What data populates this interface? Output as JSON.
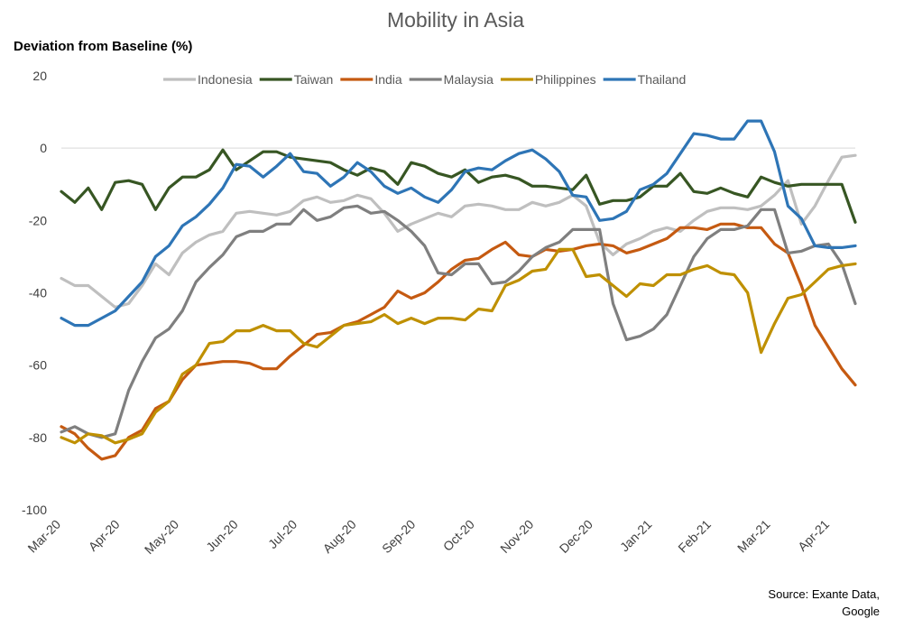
{
  "chart_data": {
    "type": "line",
    "title": "Mobility in Asia",
    "ylabel": "Deviation from Baseline (%)",
    "xlabel": "",
    "ylim": [
      -100,
      20
    ],
    "yticks": [
      20,
      0,
      -20,
      -40,
      -60,
      -80,
      -100
    ],
    "x_tick_labels": [
      "Mar-20",
      "Apr-20",
      "May-20",
      "Jun-20",
      "Jul-20",
      "Aug-20",
      "Sep-20",
      "Oct-20",
      "Nov-20",
      "Dec-20",
      "Jan-21",
      "Feb-21",
      "Mar-21",
      "Apr-21"
    ],
    "legend_position": "top",
    "grid": false,
    "source": [
      "Source: Exante Data,",
      "Google"
    ],
    "series": [
      {
        "name": "Indonesia",
        "color": "#BFBFBF",
        "values": [
          -36,
          -38,
          -38,
          -41,
          -44,
          -43,
          -38,
          -32,
          -35,
          -29,
          -26,
          -24,
          -23,
          -18,
          -17.5,
          -18,
          -18.5,
          -17.5,
          -14.5,
          -13.5,
          -15,
          -14.5,
          -13,
          -14,
          -18,
          -23,
          -21,
          -19.5,
          -18,
          -19,
          -16,
          -15.5,
          -16,
          -17,
          -17,
          -15,
          -16,
          -15,
          -13,
          -16,
          -26,
          -29.5,
          -26.5,
          -25,
          -23,
          -22,
          -23,
          -20,
          -17.5,
          -16.5,
          -16.5,
          -17,
          -16,
          -13,
          -9,
          -21,
          -16,
          -9,
          -2.5,
          -2
        ]
      },
      {
        "name": "Taiwan",
        "color": "#375623",
        "values": [
          -12,
          -15,
          -11,
          -17,
          -9.5,
          -9,
          -10,
          -17,
          -11,
          -8,
          -8,
          -6,
          -0.5,
          -6,
          -3.5,
          -1,
          -1,
          -2.5,
          -3,
          -3.5,
          -4,
          -6,
          -7.5,
          -5.5,
          -6.5,
          -10,
          -4,
          -5,
          -7,
          -8,
          -6,
          -9.5,
          -8,
          -7.5,
          -8.5,
          -10.5,
          -10.5,
          -11,
          -11.5,
          -7.5,
          -15.5,
          -14.5,
          -14.5,
          -13.5,
          -10.5,
          -10.5,
          -7,
          -12,
          -12.5,
          -11,
          -12.5,
          -13.5,
          -8,
          -9.5,
          -10.5,
          -10,
          -10,
          -10,
          -10,
          -20.5
        ]
      },
      {
        "name": "India",
        "color": "#C55A11",
        "values": [
          -77,
          -79,
          -83,
          -86,
          -85,
          -80,
          -78,
          -72,
          -70,
          -64,
          -60,
          -59.5,
          -59,
          -59,
          -59.5,
          -61,
          -61,
          -57.5,
          -54.5,
          -51.5,
          -51,
          -49,
          -48,
          -46,
          -44,
          -39.5,
          -41.5,
          -40,
          -37,
          -33.5,
          -31,
          -30.5,
          -28,
          -26,
          -29.5,
          -30,
          -28,
          -28.5,
          -28,
          -27,
          -26.5,
          -27,
          -29,
          -28,
          -26.5,
          -25,
          -22,
          -22,
          -22.5,
          -21,
          -21,
          -22,
          -22,
          -26.5,
          -29,
          -38,
          -49,
          -55,
          -61,
          -65.5
        ]
      },
      {
        "name": "Malaysia",
        "color": "#7F7F7F",
        "values": [
          -78.5,
          -77,
          -79,
          -80,
          -79,
          -67,
          -59,
          -52.5,
          -50,
          -45,
          -37,
          -33,
          -29.5,
          -24.5,
          -23,
          -23,
          -21,
          -21,
          -17,
          -20,
          -19,
          -16.5,
          -16,
          -18,
          -17.5,
          -20,
          -23,
          -27,
          -34.5,
          -35,
          -32,
          -32,
          -37.5,
          -37,
          -34,
          -30,
          -27.5,
          -26,
          -22.5,
          -22.5,
          -22.5,
          -43,
          -53,
          -52,
          -50,
          -46,
          -38,
          -30,
          -25,
          -22.5,
          -22.5,
          -21.5,
          -17,
          -17,
          -29,
          -28.5,
          -27,
          -26.5,
          -32,
          -43
        ]
      },
      {
        "name": "Philippines",
        "color": "#BF9000",
        "values": [
          -80,
          -81.5,
          -79,
          -79.5,
          -81.5,
          -80.5,
          -79,
          -73,
          -70,
          -62.5,
          -60,
          -54,
          -53.5,
          -50.5,
          -50.5,
          -49,
          -50.5,
          -50.5,
          -54,
          -55,
          -52,
          -49,
          -48.5,
          -48,
          -46,
          -48.5,
          -47,
          -48.5,
          -47,
          -47,
          -47.5,
          -44.5,
          -45,
          -38,
          -36.5,
          -34,
          -33.5,
          -28,
          -28,
          -35.5,
          -35,
          -38,
          -41,
          -37.5,
          -38,
          -35,
          -35,
          -33.5,
          -32.5,
          -34.5,
          -35,
          -40,
          -56.5,
          -48.5,
          -41.5,
          -40.5,
          -37,
          -33.5,
          -32.5,
          -32
        ]
      },
      {
        "name": "Thailand",
        "color": "#2E75B6",
        "values": [
          -47,
          -49,
          -49,
          -47,
          -45,
          -41,
          -37,
          -30,
          -27,
          -21.5,
          -19,
          -15.5,
          -11,
          -4.5,
          -5,
          -8,
          -5,
          -1.5,
          -6.5,
          -7,
          -10.5,
          -8,
          -4,
          -6.5,
          -10.5,
          -12.5,
          -11,
          -13.5,
          -15,
          -11.5,
          -6.5,
          -5.5,
          -6,
          -3.5,
          -1.5,
          -0.5,
          -3,
          -6.5,
          -13,
          -13.5,
          -20,
          -19.5,
          -17.5,
          -11.5,
          -10,
          -7,
          -1.5,
          4,
          3.5,
          2.5,
          2.5,
          7.5,
          7.5,
          -1,
          -16,
          -19.5,
          -27,
          -27.5,
          -27.5,
          -27
        ]
      }
    ]
  }
}
